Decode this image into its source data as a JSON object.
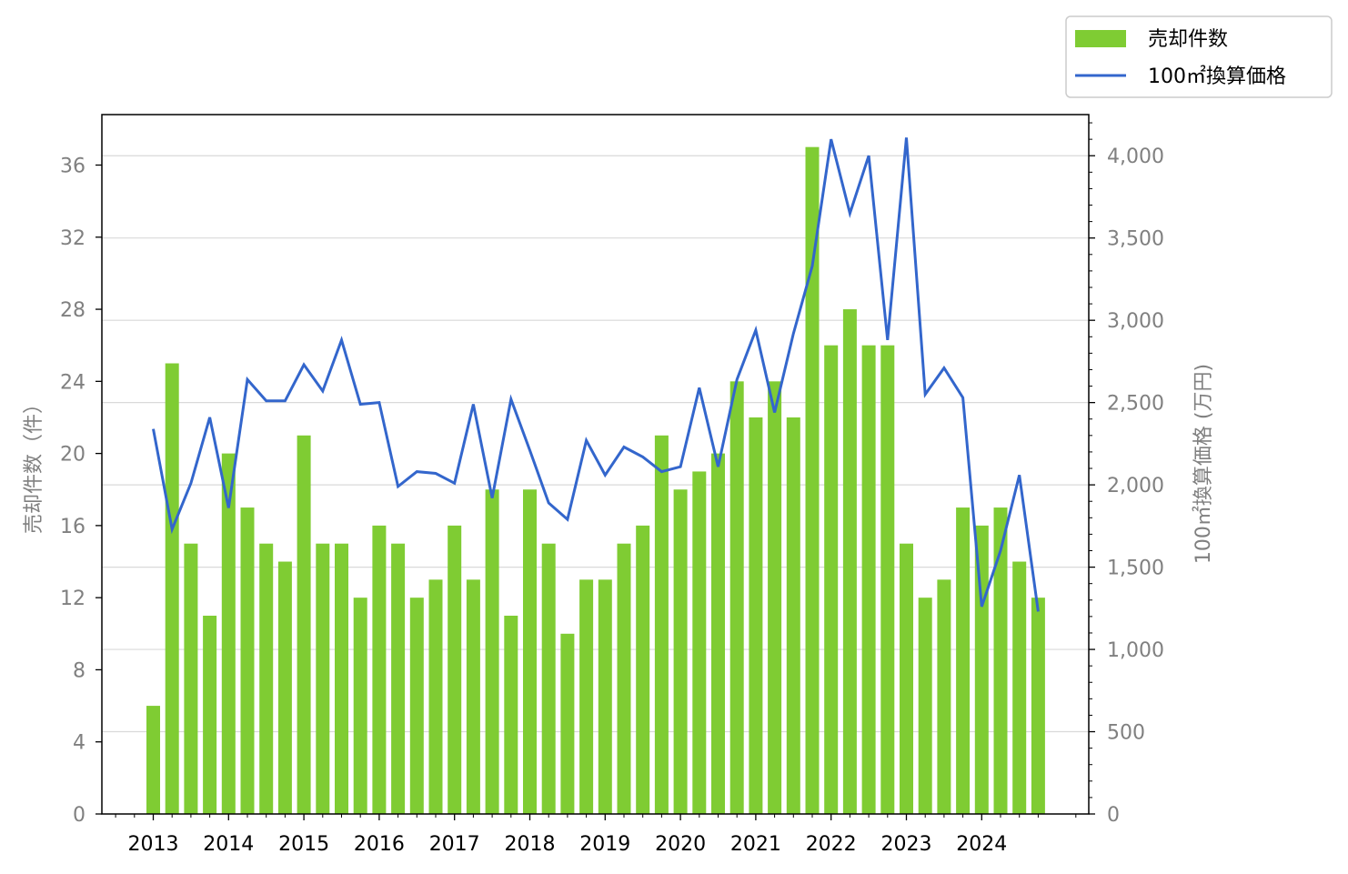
{
  "chart_data": {
    "type": "bar",
    "x_tick_labels": [
      "2013",
      "2014",
      "2015",
      "2016",
      "2017",
      "2018",
      "2019",
      "2020",
      "2021",
      "2022",
      "2023",
      "2024"
    ],
    "series": [
      {
        "name": "売却件数",
        "type": "bar",
        "axis": "left",
        "color": "#7fcc33",
        "values": [
          6,
          25,
          15,
          11,
          20,
          17,
          15,
          14,
          21,
          15,
          15,
          12,
          16,
          15,
          12,
          13,
          16,
          13,
          18,
          11,
          18,
          15,
          10,
          13,
          13,
          15,
          16,
          21,
          18,
          19,
          20,
          24,
          22,
          24,
          22,
          37,
          26,
          28,
          26,
          26,
          15,
          12,
          13,
          17,
          16,
          17,
          14,
          12
        ]
      },
      {
        "name": "100㎡換算価格",
        "type": "line",
        "axis": "right",
        "color": "#3366cc",
        "values": [
          2340,
          1730,
          2010,
          2410,
          1860,
          2640,
          2510,
          2510,
          2730,
          2570,
          2880,
          2490,
          2500,
          1990,
          2080,
          2070,
          2010,
          2490,
          1920,
          2520,
          2210,
          1890,
          1790,
          2270,
          2060,
          2230,
          2170,
          2080,
          2110,
          2590,
          2110,
          2640,
          2940,
          2440,
          2920,
          3330,
          4100,
          3650,
          4000,
          2880,
          4110,
          2550,
          2710,
          2530,
          1260,
          1600,
          2060,
          1230
        ]
      }
    ],
    "y_left": {
      "label": "売却件数（件）",
      "ticks": [
        "0",
        "4",
        "8",
        "12",
        "16",
        "20",
        "24",
        "28",
        "32",
        "36"
      ],
      "ylim": [
        0,
        38.8
      ]
    },
    "y_right": {
      "label": "100㎡換算価格 (万円)",
      "ticks": [
        "0",
        "500",
        "1,000",
        "1,500",
        "2,000",
        "2,500",
        "3,000",
        "3,500",
        "4,000"
      ],
      "ylim": [
        0,
        4250
      ]
    },
    "grid": "horizontal, right axis",
    "legend": {
      "placement": "top-right, outside plot",
      "entries": [
        "売却件数",
        "100㎡換算価格"
      ]
    }
  }
}
